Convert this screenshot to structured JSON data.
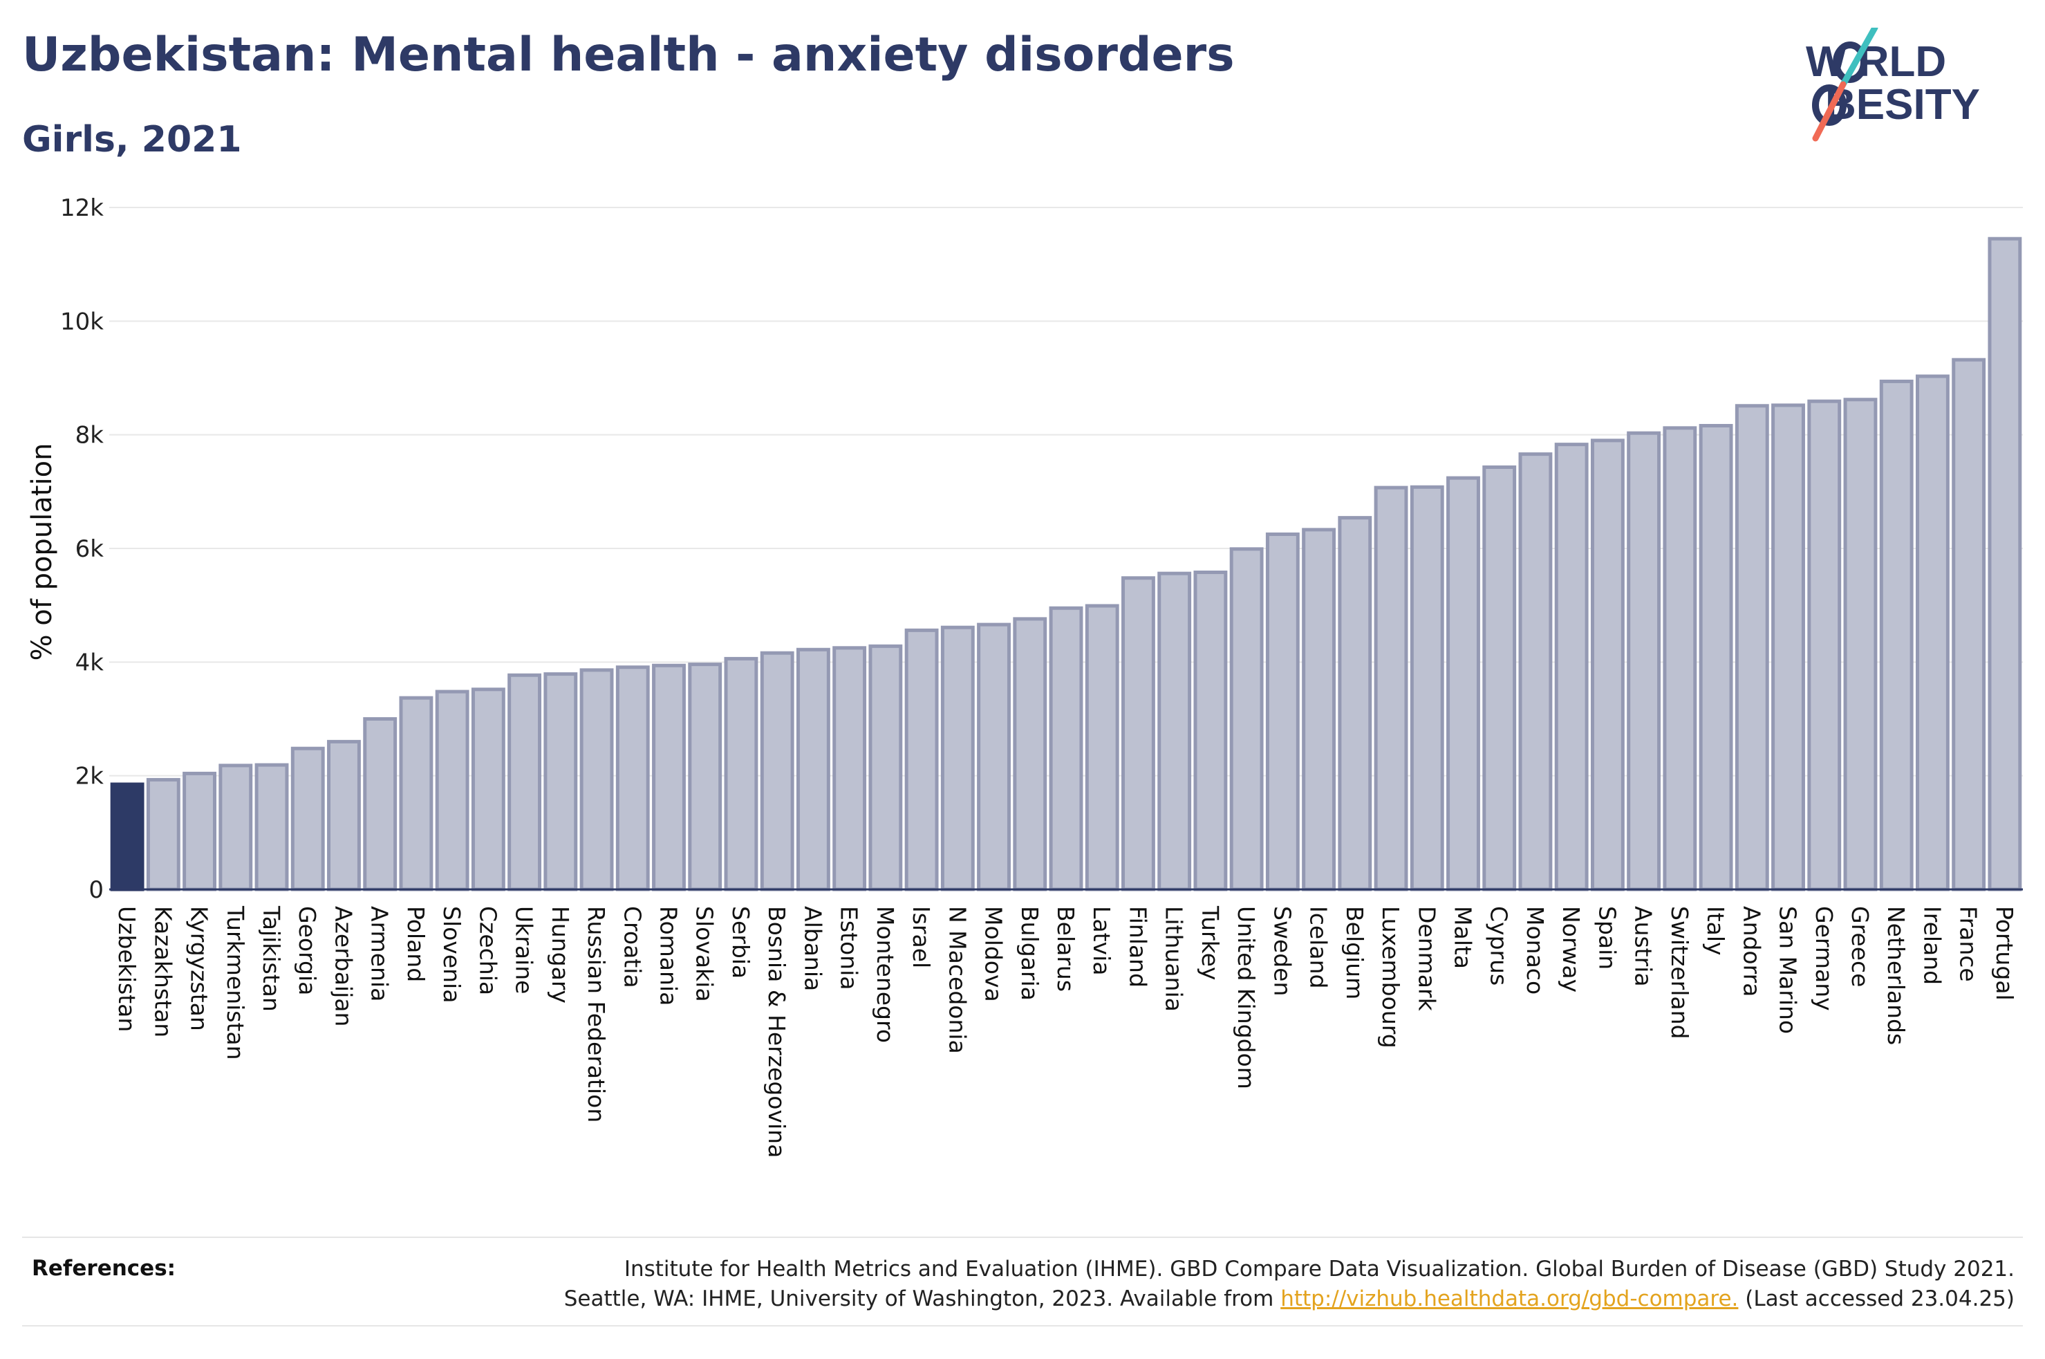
{
  "header": {
    "title": "Uzbekistan: Mental health - anxiety disorders",
    "subtitle": "Girls, 2021"
  },
  "logo": {
    "line1": "W RLD",
    "line2": "BESITY",
    "text": "WORLD OBESITY"
  },
  "references": {
    "label": "References:",
    "line1": "Institute for Health Metrics and Evaluation (IHME). GBD Compare Data Visualization. Global Burden of Disease (GBD) Study 2021.",
    "line2_prefix": "Seattle, WA: IHME, University of Washington, 2023. Available from",
    "link": "http://vizhub.healthdata.org/gbd-compare.",
    "line2_suffix": "(Last accessed 23.04.25)"
  },
  "colors": {
    "highlight": "#2d3a66",
    "bar_fill": "#bdc1d1",
    "bar_stroke": "#9499b3",
    "title": "#2e3a66",
    "link": "#e3a31e",
    "logo_teal": "#3fbfbf",
    "logo_coral": "#f06a55"
  },
  "chart_data": {
    "type": "bar",
    "ylabel": "% of population",
    "xlabel": "",
    "ylim": [
      0,
      12000
    ],
    "yticks": [
      0,
      2000,
      4000,
      6000,
      8000,
      10000,
      12000
    ],
    "ytick_labels": [
      "0",
      "2k",
      "4k",
      "6k",
      "8k",
      "10k",
      "12k"
    ],
    "grid": true,
    "highlight": "Uzbekistan",
    "categories": [
      "Uzbekistan",
      "Kazakhstan",
      "Kyrgyzstan",
      "Turkmenistan",
      "Tajikistan",
      "Georgia",
      "Azerbaijan",
      "Armenia",
      "Poland",
      "Slovenia",
      "Czechia",
      "Ukraine",
      "Hungary",
      "Russian Federation",
      "Croatia",
      "Romania",
      "Slovakia",
      "Serbia",
      "Bosnia & Herzegovina",
      "Albania",
      "Estonia",
      "Montenegro",
      "Israel",
      "N Macedonia",
      "Moldova",
      "Bulgaria",
      "Belarus",
      "Latvia",
      "Finland",
      "Lithuania",
      "Turkey",
      "United Kingdom",
      "Sweden",
      "Iceland",
      "Belgium",
      "Luxembourg",
      "Denmark",
      "Malta",
      "Cyprus",
      "Monaco",
      "Norway",
      "Spain",
      "Austria",
      "Switzerland",
      "Italy",
      "Andorra",
      "San Marino",
      "Germany",
      "Greece",
      "Netherlands",
      "Ireland",
      "France",
      "Portugal"
    ],
    "values": [
      1850,
      1930,
      2040,
      2180,
      2190,
      2480,
      2600,
      3000,
      3370,
      3480,
      3520,
      3770,
      3790,
      3860,
      3910,
      3940,
      3960,
      4060,
      4160,
      4220,
      4250,
      4280,
      4560,
      4610,
      4660,
      4760,
      4950,
      4990,
      5480,
      5560,
      5580,
      5990,
      6250,
      6330,
      6540,
      7070,
      7080,
      7240,
      7430,
      7660,
      7830,
      7900,
      8030,
      8120,
      8160,
      8510,
      8520,
      8590,
      8620,
      8940,
      9030,
      9320,
      11450
    ]
  }
}
